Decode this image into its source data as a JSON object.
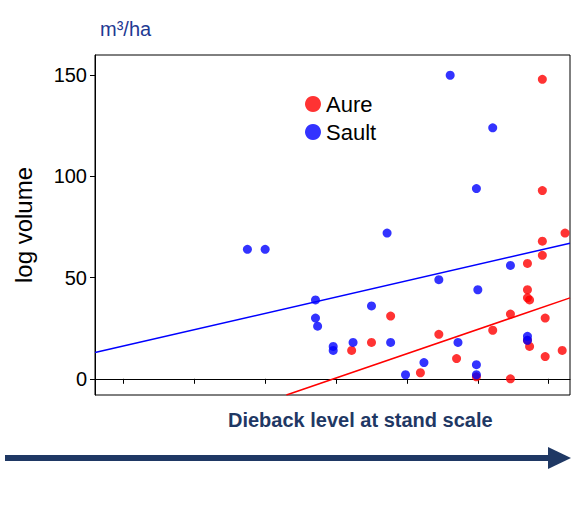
{
  "chart_data": {
    "type": "scatter",
    "unit_label": "m³/ha",
    "y_label": "log volume",
    "x_label": "Dieback level at stand scale",
    "xlim": [
      1.6,
      8.3
    ],
    "xticks": [
      2,
      3,
      4,
      5,
      6,
      7,
      8
    ],
    "ylim": [
      -8,
      160
    ],
    "yticks": [
      0,
      50,
      100,
      150
    ],
    "tick_labels": "y",
    "legend": "top",
    "marker": "circle",
    "series": [
      {
        "name": "Aure",
        "color": "#ff0000",
        "x": [
          5.22,
          5.5,
          5.77,
          6.19,
          6.45,
          6.7,
          6.98,
          7.21,
          7.46,
          7.46,
          7.7,
          7.7,
          7.7,
          7.7,
          7.73,
          7.73,
          7.91,
          7.91,
          7.91,
          7.91,
          7.95,
          7.95,
          8.19,
          8.23
        ],
        "values": [
          14,
          18,
          31,
          3,
          22,
          10,
          1,
          24,
          0,
          32,
          57,
          44,
          19,
          40,
          16,
          39,
          148,
          93,
          68,
          61,
          11,
          30,
          14,
          72
        ],
        "trend": {
          "x": [
            4.3,
            8.3
          ],
          "values": [
            -8,
            40
          ]
        }
      },
      {
        "name": "Sault",
        "color": "#0000ff",
        "x": [
          3.75,
          4.0,
          4.71,
          4.71,
          4.74,
          4.96,
          4.96,
          5.24,
          5.5,
          5.72,
          5.77,
          5.98,
          6.24,
          6.45,
          6.61,
          6.72,
          6.98,
          6.98,
          6.98,
          7.0,
          7.21,
          7.46,
          7.7,
          7.7
        ],
        "values": [
          64,
          64,
          39,
          30,
          26,
          16,
          14,
          18,
          36,
          72,
          18,
          2,
          8,
          49,
          150,
          18,
          94,
          7,
          2,
          44,
          124,
          56,
          19,
          21
        ],
        "trend": {
          "x": [
            1.6,
            8.3
          ],
          "values": [
            13,
            67
          ]
        }
      }
    ]
  }
}
